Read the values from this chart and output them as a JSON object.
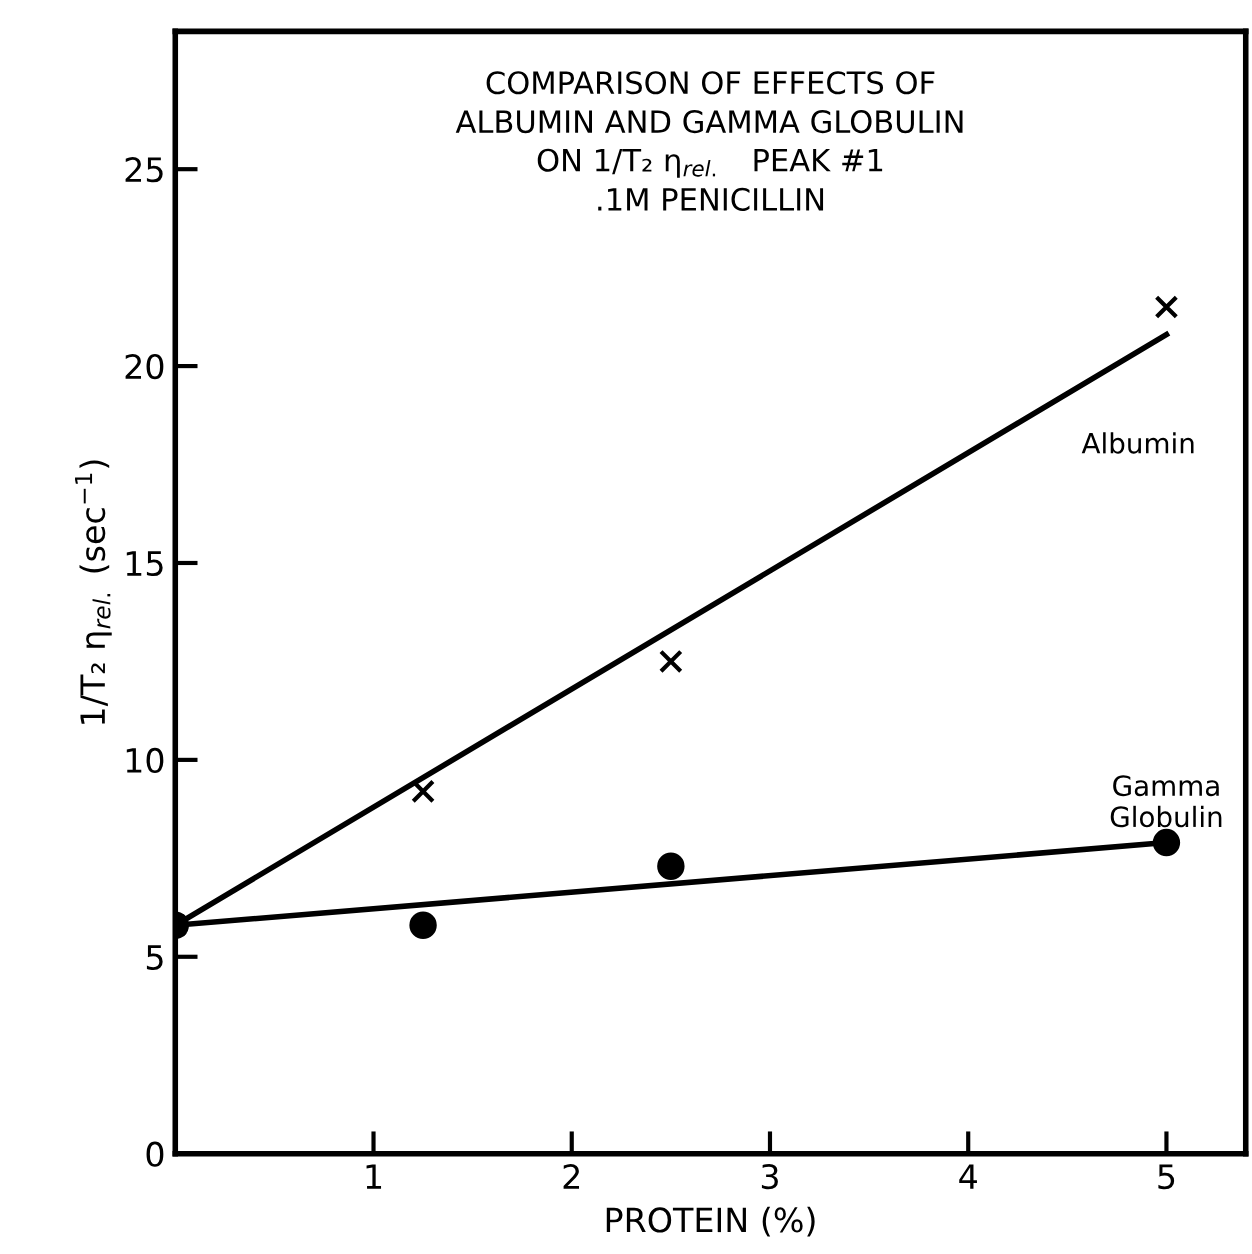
{
  "chart_data": {
    "type": "scatter",
    "title": "COMPARISON OF EFFECTS OF\nALBUMIN AND GAMMA GLOBULIN\nON 1/T₂ η$_{rel.}$   PEAK #1\n.1M PENICILLIN",
    "xlabel": "PROTEIN (%)",
    "ylabel": "1/T₂ η$_{rel.}$ (sec$^{−1}$)",
    "xlim": [
      0,
      5.4
    ],
    "ylim": [
      0,
      28.5
    ],
    "xticks": [
      1,
      2,
      3,
      4,
      5
    ],
    "yticks": [
      0,
      5,
      10,
      15,
      20,
      25
    ],
    "grid": false,
    "legend": false,
    "series": [
      {
        "marker": "cross",
        "color": "#000000",
        "x": [
          0,
          1.25,
          2.5,
          5
        ],
        "values": [
          5.8,
          9.2,
          12.5,
          21.5
        ]
      },
      {
        "marker": "circle",
        "color": "#000000",
        "x": [
          0,
          1.25,
          2.5,
          5
        ],
        "values": [
          5.8,
          5.8,
          7.3,
          7.9
        ]
      },
      {
        "type": "line",
        "name": "Albumin",
        "color": "#000000",
        "x": [
          0,
          5
        ],
        "values": [
          5.8,
          20.8
        ]
      },
      {
        "type": "line",
        "name": "Gamma\nGlobulin",
        "color": "#000000",
        "x": [
          0,
          5
        ],
        "values": [
          5.8,
          7.9
        ]
      }
    ]
  }
}
